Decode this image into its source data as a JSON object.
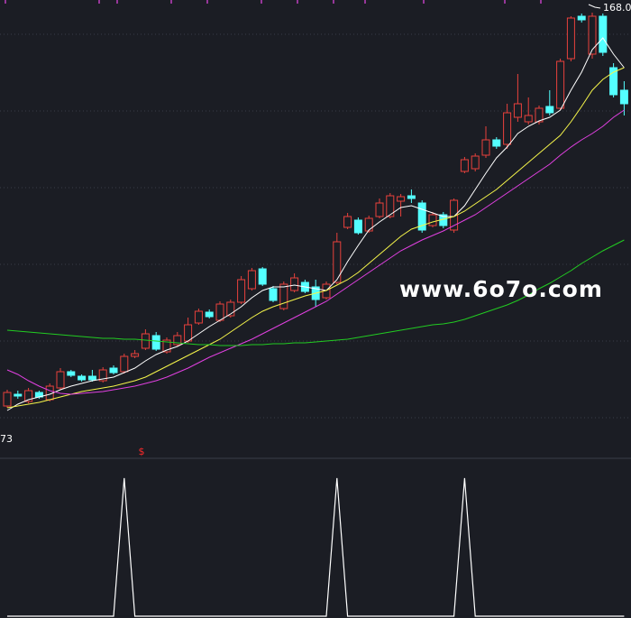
{
  "chart_data": [
    {
      "type": "candlestick",
      "ylim": [
        44.75,
        171.5
      ],
      "yticks": [
        162,
        140.75,
        119.5,
        98.25,
        77,
        55.75
      ],
      "grid": true,
      "up_color": "#e8413c",
      "down_color": "#54ffff",
      "open": [
        59,
        62.25,
        60.25,
        62.75,
        60.75,
        64,
        68.5,
        67.25,
        67.25,
        66,
        69.5,
        68.5,
        72.75,
        75,
        78.5,
        74,
        76,
        77,
        82,
        85,
        82.75,
        84,
        87.75,
        91.5,
        97,
        91.5,
        86,
        91,
        93.25,
        92,
        89,
        93.25,
        108.5,
        110.5,
        107.5,
        111.5,
        111.5,
        115.75,
        117.25,
        115.25,
        109,
        112,
        107.75,
        124,
        124.75,
        128.5,
        132.75,
        131.5,
        139,
        137.75,
        137.75,
        142,
        141.5,
        155.25,
        167,
        156.5,
        167,
        152.75,
        146.5
      ],
      "high": [
        63.5,
        63.25,
        64,
        63.25,
        65.25,
        69.5,
        69,
        67.75,
        69,
        69.75,
        70.25,
        73.5,
        74.5,
        80.25,
        79.5,
        78,
        79.5,
        83.5,
        86,
        85.75,
        88,
        88.5,
        95,
        97.25,
        97.5,
        92.25,
        93.5,
        95.75,
        94,
        94,
        93.5,
        107,
        112.5,
        111.25,
        111.75,
        116.5,
        118,
        117.75,
        119,
        116,
        112.75,
        112.75,
        116.5,
        128,
        129,
        136.5,
        133.5,
        142.75,
        151,
        144.5,
        142.25,
        146.5,
        155.25,
        167,
        167.75,
        168,
        167.75,
        154,
        149
      ],
      "low": [
        58.5,
        61,
        59.75,
        61,
        60.25,
        63.5,
        67,
        65.75,
        65.75,
        65.5,
        67.75,
        68,
        72.25,
        74.5,
        74.25,
        73.5,
        75.5,
        76.5,
        81.5,
        83.25,
        82.25,
        83.5,
        87.25,
        91,
        92.25,
        87.75,
        85.5,
        90.5,
        90.25,
        86.5,
        88.5,
        92.75,
        108,
        106.5,
        107,
        111,
        111,
        111.5,
        115.25,
        107,
        108.5,
        108.25,
        107,
        123.5,
        124,
        127.75,
        130.25,
        130.25,
        137.75,
        137,
        137,
        139.5,
        141,
        154.5,
        165.25,
        155.25,
        156,
        144.5,
        139.5
      ],
      "close": [
        62.75,
        61.75,
        63.25,
        61.5,
        64.5,
        68.5,
        67.5,
        66.25,
        66.25,
        69,
        68.25,
        72.75,
        73.5,
        79,
        74.75,
        77.25,
        78.5,
        81.5,
        85.25,
        83.75,
        87.25,
        87.75,
        94,
        96.5,
        92.75,
        88.25,
        92.75,
        94.5,
        90.75,
        88.5,
        92.75,
        104.5,
        111.5,
        107,
        111,
        115.25,
        117.25,
        117,
        116.5,
        107.75,
        112,
        109,
        116,
        127.25,
        128.25,
        132.75,
        131,
        140.25,
        142.75,
        139.5,
        141.5,
        140.25,
        154.5,
        166.5,
        166,
        167,
        157,
        145.25,
        142.75
      ],
      "series": [
        {
          "name": "MA5",
          "color": "#ffffff",
          "values": [
            57.75,
            59.5,
            60.75,
            61.5,
            62.25,
            63.5,
            64.5,
            65.25,
            66,
            66.5,
            67,
            68.25,
            69.5,
            71.5,
            73.25,
            74.5,
            75.5,
            77,
            79,
            81,
            82.75,
            84.5,
            86.5,
            89,
            91,
            92,
            92,
            92.5,
            92,
            91.5,
            91,
            94,
            99,
            103.5,
            107.75,
            110,
            112,
            114,
            114.5,
            113.5,
            112.5,
            111.5,
            111.5,
            114.5,
            119,
            123.5,
            127.75,
            130.75,
            134.5,
            136.5,
            138,
            139,
            141,
            146.5,
            151.5,
            157.75,
            161,
            156.5,
            152.75
          ]
        },
        {
          "name": "MA10",
          "color": "#f5f54a",
          "values": [
            58.5,
            59,
            59.5,
            60,
            60.75,
            61.5,
            62.25,
            63,
            63.5,
            64,
            64.5,
            65.25,
            66,
            67,
            68.5,
            70,
            71.5,
            73,
            74.5,
            76,
            77.5,
            79.5,
            81.5,
            83.5,
            85.25,
            86.5,
            87.5,
            88.5,
            89.5,
            90.25,
            91,
            92.5,
            94,
            96,
            98.5,
            101,
            103.5,
            106,
            108,
            109,
            110,
            110.75,
            111.5,
            113,
            115,
            117,
            119,
            121.5,
            124,
            126.5,
            129,
            131.5,
            134,
            137.75,
            142,
            146.5,
            149.5,
            151.5,
            152.75
          ]
        },
        {
          "name": "MA20",
          "color": "#e040e0",
          "values": [
            69,
            67.75,
            66,
            64.5,
            63.25,
            62.5,
            62.25,
            62.5,
            62.75,
            63,
            63.5,
            64,
            64.5,
            65.25,
            66,
            67,
            68.25,
            69.5,
            71,
            72.5,
            73.75,
            75,
            76.25,
            77.5,
            79,
            80.5,
            82,
            83.5,
            85,
            86.5,
            88,
            90,
            92,
            94,
            96,
            98,
            100,
            102,
            103.5,
            105,
            106.25,
            107.5,
            109,
            110.5,
            112,
            114,
            116,
            118,
            120,
            122,
            124,
            126,
            128.5,
            130.75,
            132.75,
            134.5,
            136.5,
            139,
            141
          ]
        },
        {
          "name": "MA60",
          "color": "#22cc22",
          "values": [
            80,
            79.75,
            79.5,
            79.25,
            79,
            78.75,
            78.5,
            78.25,
            78,
            77.75,
            77.75,
            77.5,
            77.5,
            77.25,
            77,
            76.75,
            76.5,
            76.25,
            76,
            76,
            75.75,
            75.75,
            75.75,
            76,
            76,
            76.25,
            76.25,
            76.5,
            76.5,
            76.75,
            77,
            77.25,
            77.5,
            78,
            78.5,
            79,
            79.5,
            80,
            80.5,
            81,
            81.5,
            81.75,
            82.25,
            83,
            84,
            85,
            86,
            87,
            88.25,
            89.75,
            91.5,
            93,
            94.75,
            96.5,
            98.5,
            100.25,
            102,
            103.5,
            105
          ]
        }
      ],
      "annotations": [
        "168.0",
        "73",
        "$",
        "www.6o7o.com"
      ]
    },
    {
      "type": "line",
      "ylim": [
        0,
        1.13
      ],
      "color": "#ffffff",
      "values": [
        0,
        0,
        0,
        0,
        0,
        0,
        0,
        0,
        0,
        0,
        0,
        1,
        0,
        0,
        0,
        0,
        0,
        0,
        0,
        0,
        0,
        0,
        0,
        0,
        0,
        0,
        0,
        0,
        0,
        0,
        0,
        1,
        0,
        0,
        0,
        0,
        0,
        0,
        0,
        0,
        0,
        0,
        0,
        1,
        0,
        0,
        0,
        0,
        0,
        0,
        0,
        0,
        0,
        0,
        0,
        0,
        0,
        0,
        0
      ]
    }
  ]
}
